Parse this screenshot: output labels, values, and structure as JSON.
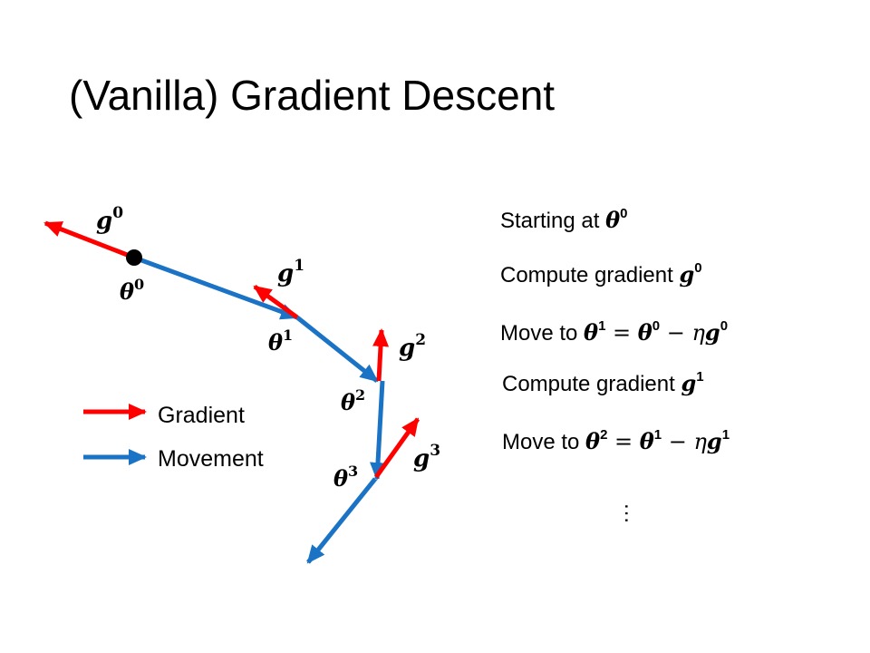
{
  "title": "(Vanilla) Gradient Descent",
  "colors": {
    "gradient": "#ff0000",
    "movement": "#1a73c4",
    "point": "#000000"
  },
  "diagram": {
    "labels": {
      "g0": {
        "base": "g",
        "sup": "0"
      },
      "theta0": {
        "base": "θ",
        "sup": "0"
      },
      "g1": {
        "base": "g",
        "sup": "1"
      },
      "theta1": {
        "base": "θ",
        "sup": "1"
      },
      "g2": {
        "base": "g",
        "sup": "2"
      },
      "theta2": {
        "base": "θ",
        "sup": "2"
      },
      "g3": {
        "base": "g",
        "sup": "3"
      },
      "theta3": {
        "base": "θ",
        "sup": "3"
      }
    },
    "legend": {
      "gradient": "Gradient",
      "movement": "Movement"
    }
  },
  "steps": [
    {
      "text": "Starting at ",
      "sym": "θ",
      "sup": "0"
    },
    {
      "text": "Compute gradient ",
      "sym": "g",
      "sup": "0"
    },
    {
      "text": "Move to ",
      "lhs": "θ",
      "lhs_sup": "1",
      "eq": " = ",
      "r1": "θ",
      "r1_sup": "0",
      "minus": " − ",
      "eta": "η",
      "r2": "g",
      "r2_sup": "0"
    },
    {
      "text": "Compute gradient ",
      "sym": "g",
      "sup": "1"
    },
    {
      "text": "Move to ",
      "lhs": "θ",
      "lhs_sup": "2",
      "eq": " = ",
      "r1": "θ",
      "r1_sup": "1",
      "minus": " − ",
      "eta": "η",
      "r2": "g",
      "r2_sup": "1"
    }
  ],
  "ellipsis": "……"
}
